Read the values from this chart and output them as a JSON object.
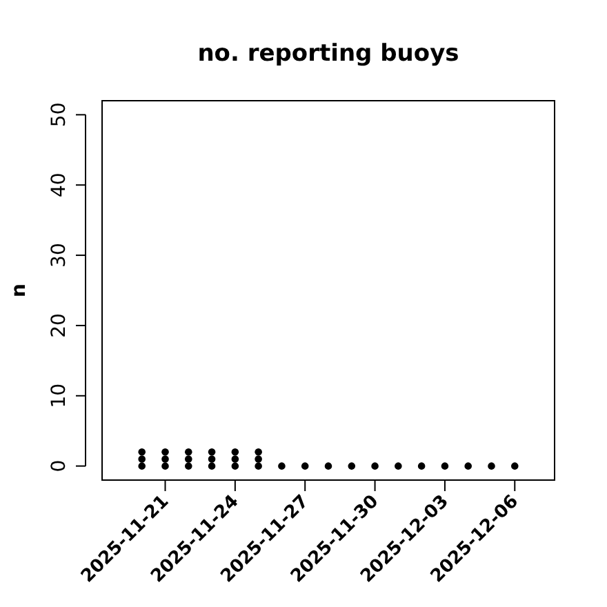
{
  "chart_data": {
    "type": "scatter",
    "title": "no. reporting buoys",
    "ylabel": "n",
    "x": [
      "2025-11-20",
      "2025-11-20",
      "2025-11-20",
      "2025-11-21",
      "2025-11-21",
      "2025-11-21",
      "2025-11-22",
      "2025-11-22",
      "2025-11-22",
      "2025-11-23",
      "2025-11-23",
      "2025-11-23",
      "2025-11-24",
      "2025-11-24",
      "2025-11-24",
      "2025-11-25",
      "2025-11-25",
      "2025-11-25",
      "2025-11-26",
      "2025-11-27",
      "2025-11-28",
      "2025-11-29",
      "2025-11-30",
      "2025-12-01",
      "2025-12-02",
      "2025-12-03",
      "2025-12-04",
      "2025-12-05",
      "2025-12-06"
    ],
    "values": [
      0,
      1,
      2,
      0,
      1,
      2,
      0,
      1,
      2,
      0,
      1,
      2,
      0,
      1,
      2,
      0,
      1,
      2,
      0,
      0,
      0,
      0,
      0,
      0,
      0,
      0,
      0,
      0,
      0
    ],
    "color": "#000000",
    "marker": "circle",
    "xlim": [
      "2025-11-18T07:00",
      "2025-12-07T17:00"
    ],
    "xticks": [
      {
        "value": "2025-11-21",
        "label": "2025-11-21"
      },
      {
        "value": "2025-11-24",
        "label": "2025-11-24"
      },
      {
        "value": "2025-11-27",
        "label": "2025-11-27"
      },
      {
        "value": "2025-11-30",
        "label": "2025-11-30"
      },
      {
        "value": "2025-12-03",
        "label": "2025-12-03"
      },
      {
        "value": "2025-12-06",
        "label": "2025-12-06"
      }
    ],
    "ylim": [
      -2,
      52
    ],
    "yticks": [
      0,
      10,
      20,
      30,
      40,
      50
    ],
    "grid": false
  }
}
